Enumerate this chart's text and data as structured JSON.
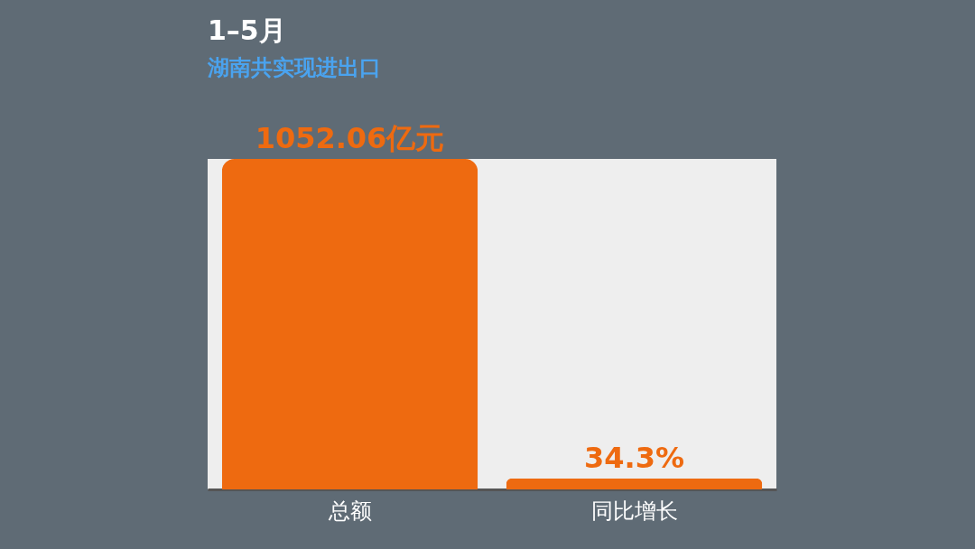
{
  "chart_data": {
    "type": "bar",
    "title": "1–5月",
    "subtitle": "湖南共实现进出口",
    "categories": [
      "总额",
      "同比增长"
    ],
    "values": [
      1052.06,
      34.3
    ],
    "value_labels": [
      "1052.06亿元",
      "34.3%"
    ],
    "color": "#ee6a10"
  }
}
